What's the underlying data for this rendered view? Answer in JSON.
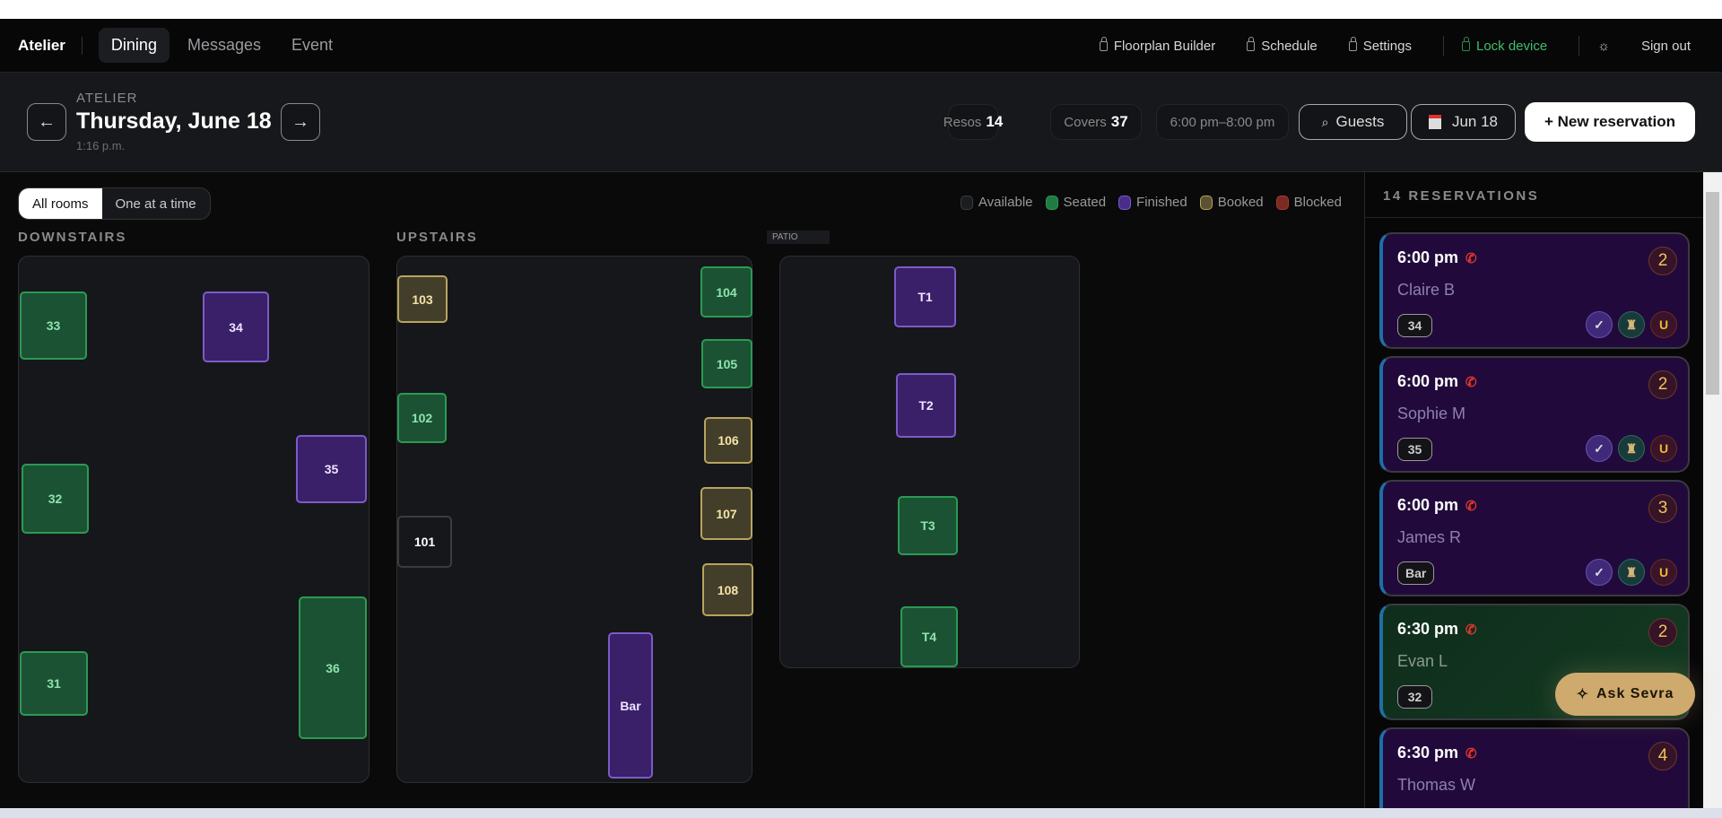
{
  "nav": {
    "brand": "Atelier",
    "tabs": [
      {
        "label": "Dining",
        "active": true
      },
      {
        "label": "Messages"
      },
      {
        "label": "Event"
      }
    ],
    "links": {
      "floorplan": "Floorplan Builder",
      "schedule": "Schedule",
      "settings": "Settings",
      "lock": "Lock device",
      "signout": "Sign out"
    }
  },
  "header": {
    "venue": "ATELIER",
    "date": "Thursday, June 18",
    "time": "1:16 p.m.",
    "prev": "←",
    "next": "→",
    "resos_label": "Resos",
    "resos": "14",
    "covers_label": "Covers",
    "covers": "37",
    "range": "6:00 pm–8:00 pm",
    "guests": "Guests",
    "date_btn": "Jun 18",
    "new_btn": "+ New reservation"
  },
  "view": {
    "all": "All rooms",
    "one": "One at a time"
  },
  "legend": [
    {
      "label": "Available",
      "status": "available"
    },
    {
      "label": "Seated",
      "status": "seated"
    },
    {
      "label": "Finished",
      "status": "finished"
    },
    {
      "label": "Booked",
      "status": "booked"
    },
    {
      "label": "Blocked",
      "status": "blocked"
    }
  ],
  "colors": {
    "seated": "#1b5233",
    "finished": "#3a1f69",
    "booked": "#433e29",
    "available": "#16171a",
    "blocked": "#7a2a22",
    "accent": "#cfaa6e"
  },
  "rooms": {
    "downstairs": "DOWNSTAIRS",
    "upstairs": "UPSTAIRS",
    "patio": "PATIO"
  },
  "tables": [
    {
      "id": "33",
      "room": "downstairs",
      "status": "seated"
    },
    {
      "id": "34",
      "room": "downstairs",
      "status": "finished"
    },
    {
      "id": "35",
      "room": "downstairs",
      "status": "finished"
    },
    {
      "id": "32",
      "room": "downstairs",
      "status": "seated"
    },
    {
      "id": "31",
      "room": "downstairs",
      "status": "seated"
    },
    {
      "id": "36",
      "room": "downstairs",
      "status": "seated"
    },
    {
      "id": "103",
      "room": "upstairs",
      "status": "booked"
    },
    {
      "id": "104",
      "room": "upstairs",
      "status": "seated"
    },
    {
      "id": "105",
      "room": "upstairs",
      "status": "seated"
    },
    {
      "id": "102",
      "room": "upstairs",
      "status": "seated"
    },
    {
      "id": "106",
      "room": "upstairs",
      "status": "booked"
    },
    {
      "id": "107",
      "room": "upstairs",
      "status": "booked"
    },
    {
      "id": "101",
      "room": "upstairs",
      "status": "available"
    },
    {
      "id": "108",
      "room": "upstairs",
      "status": "booked"
    },
    {
      "id": "Bar",
      "room": "upstairs",
      "status": "finished"
    },
    {
      "id": "T1",
      "room": "patio",
      "status": "finished"
    },
    {
      "id": "T2",
      "room": "patio",
      "status": "finished"
    },
    {
      "id": "T3",
      "room": "patio",
      "status": "seated"
    },
    {
      "id": "T4",
      "room": "patio",
      "status": "seated"
    }
  ],
  "sidebar": {
    "title": "14 RESERVATIONS",
    "reservations": [
      {
        "time": "6:00 pm",
        "name": "Claire B",
        "party": "2",
        "table": "34",
        "status": "finished",
        "icons": [
          "check",
          "chair",
          "U"
        ]
      },
      {
        "time": "6:00 pm",
        "name": "Sophie M",
        "party": "2",
        "table": "35",
        "status": "finished",
        "icons": [
          "check",
          "chair",
          "U"
        ]
      },
      {
        "time": "6:00 pm",
        "name": "James R",
        "party": "3",
        "table": "Bar",
        "status": "finished",
        "icons": [
          "check",
          "chair",
          "U"
        ]
      },
      {
        "time": "6:30 pm",
        "name": "Evan L",
        "party": "2",
        "table": "32",
        "status": "seated",
        "icons": []
      },
      {
        "time": "6:30 pm",
        "name": "Thomas W",
        "party": "4",
        "table": "",
        "status": "finished",
        "icons": []
      }
    ]
  },
  "assistant": {
    "label": "Ask Sevra"
  }
}
